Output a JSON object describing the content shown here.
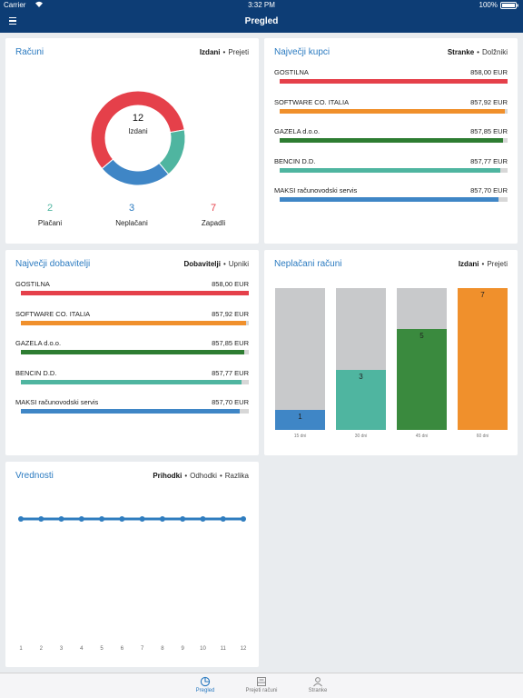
{
  "status_bar": {
    "carrier": "Carrier",
    "time": "3:32 PM",
    "battery": "100%"
  },
  "header": {
    "title": "Pregled",
    "menu_icon": "hamburger-menu-icon"
  },
  "racuni": {
    "title": "Računi",
    "toggle": {
      "active": "Izdani",
      "inactive": "Prejeti"
    },
    "donut": {
      "total": "12",
      "label": "Izdani",
      "segments": [
        {
          "name": "Zapadli",
          "value": 7,
          "color": "#e5404a"
        },
        {
          "name": "Plačani",
          "value": 2,
          "color": "#4fb5a0"
        },
        {
          "name": "Neplačani",
          "value": 3,
          "color": "#3f86c6"
        }
      ]
    },
    "stats": [
      {
        "value": "2",
        "label": "Plačani",
        "color": "#4fb5a0"
      },
      {
        "value": "3",
        "label": "Neplačani",
        "color": "#2a7ac0"
      },
      {
        "value": "7",
        "label": "Zapadli",
        "color": "#e5404a"
      }
    ]
  },
  "kupci": {
    "title": "Največji kupci",
    "toggle": {
      "active": "Stranke",
      "inactive": "Dolžniki"
    },
    "items": [
      {
        "name": "GOSTILNA",
        "value": "858,00 EUR",
        "fill": 1.0,
        "color": "#e5404a"
      },
      {
        "name": "SOFTWARE CO. ITALIA",
        "value": "857,92 EUR",
        "fill": 0.99,
        "color": "#f0902c"
      },
      {
        "name": "GAZELA d.o.o.",
        "value": "857,85 EUR",
        "fill": 0.98,
        "color": "#2e7d32"
      },
      {
        "name": "BENCIN D.D.",
        "value": "857,77 EUR",
        "fill": 0.97,
        "color": "#4fb5a0"
      },
      {
        "name": "MAKSI računovodski servis",
        "value": "857,70 EUR",
        "fill": 0.96,
        "color": "#3f86c6"
      }
    ]
  },
  "dobavitelji": {
    "title": "Največji dobavitelji",
    "toggle": {
      "active": "Dobavitelji",
      "inactive": "Upniki"
    },
    "items": [
      {
        "name": "GOSTILNA",
        "value": "858,00 EUR",
        "fill": 1.0,
        "color": "#e5404a"
      },
      {
        "name": "SOFTWARE CO. ITALIA",
        "value": "857,92 EUR",
        "fill": 0.99,
        "color": "#f0902c"
      },
      {
        "name": "GAZELA d.o.o.",
        "value": "857,85 EUR",
        "fill": 0.98,
        "color": "#2e7d32"
      },
      {
        "name": "BENCIN D.D.",
        "value": "857,77 EUR",
        "fill": 0.97,
        "color": "#4fb5a0"
      },
      {
        "name": "MAKSI računovodski servis",
        "value": "857,70 EUR",
        "fill": 0.96,
        "color": "#3f86c6"
      }
    ]
  },
  "neplacani": {
    "title": "Neplačani računi",
    "toggle": {
      "active": "Izdani",
      "inactive": "Prejeti"
    },
    "chart_data": {
      "type": "bar",
      "categories": [
        "15 dni",
        "30 dni",
        "45 dni",
        "60 dni"
      ],
      "values": [
        1,
        3,
        5,
        7
      ],
      "ylim": [
        0,
        7
      ],
      "colors": [
        "#3f86c6",
        "#4fb5a0",
        "#3a8a3e",
        "#f0902c"
      ]
    }
  },
  "vrednosti": {
    "title": "Vrednosti",
    "toggle": [
      "Prihodki",
      "Odhodki",
      "Razlika"
    ],
    "chart_data": {
      "type": "line",
      "x": [
        "1",
        "2",
        "3",
        "4",
        "5",
        "6",
        "7",
        "8",
        "9",
        "10",
        "11",
        "12"
      ],
      "series": [
        {
          "values": [
            0,
            0,
            0,
            0,
            0,
            0,
            0,
            0,
            0,
            0,
            0,
            0
          ],
          "color": "#2f7dbf"
        }
      ]
    }
  },
  "tabs": [
    {
      "label": "Pregled",
      "icon": "pie-chart-icon",
      "active": true
    },
    {
      "label": "Prejeti računi",
      "icon": "inbox-icon",
      "active": false
    },
    {
      "label": "Stranke",
      "icon": "person-icon",
      "active": false
    }
  ]
}
